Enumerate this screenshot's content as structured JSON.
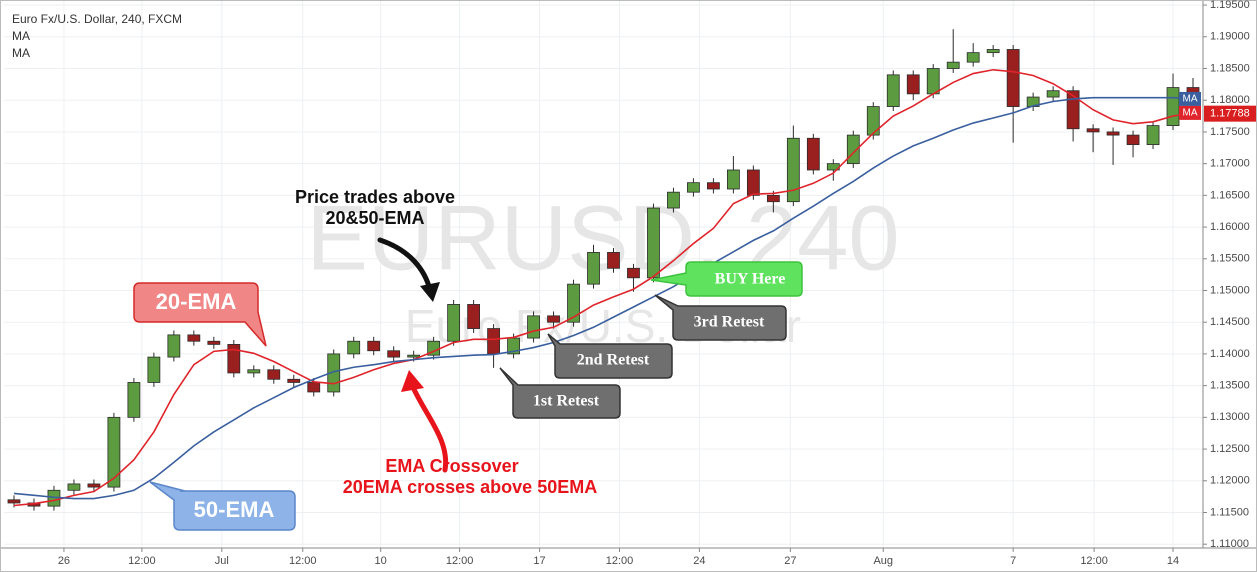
{
  "chart_data": {
    "type": "candlestick",
    "title": "Euro Fx/U.S. Dollar, 240, FXCM",
    "indicator_labels": [
      "MA",
      "MA"
    ],
    "watermark": [
      "EURUSD, 240",
      "Euro Fx/U.S. Dollar"
    ],
    "x": [
      0,
      1,
      2,
      3,
      4,
      5,
      6,
      7,
      8,
      9,
      10,
      11,
      12,
      13,
      14,
      15,
      16,
      17,
      18,
      19,
      20,
      21,
      22,
      23,
      24,
      25,
      26,
      27,
      28,
      29,
      30,
      31,
      32,
      33,
      34,
      35,
      36,
      37,
      38,
      39,
      40,
      41,
      42,
      43,
      44,
      45,
      46,
      47,
      48,
      49,
      50,
      51,
      52,
      53,
      54,
      55,
      56,
      57,
      58,
      59
    ],
    "open": [
      1.117,
      1.1165,
      1.116,
      1.1185,
      1.1195,
      1.119,
      1.13,
      1.1355,
      1.1395,
      1.143,
      1.142,
      1.1415,
      1.137,
      1.1375,
      1.136,
      1.1355,
      1.134,
      1.14,
      1.142,
      1.1405,
      1.1395,
      1.1398,
      1.142,
      1.1478,
      1.144,
      1.14,
      1.1425,
      1.146,
      1.145,
      1.151,
      1.156,
      1.1535,
      1.152,
      1.163,
      1.1655,
      1.167,
      1.166,
      1.169,
      1.165,
      1.164,
      1.174,
      1.169,
      1.17,
      1.1745,
      1.179,
      1.184,
      1.181,
      1.185,
      1.186,
      1.1875,
      1.188,
      1.179,
      1.1805,
      1.1815,
      1.1755,
      1.175,
      1.1745,
      1.173,
      1.176,
      1.182
    ],
    "high": [
      1.1177,
      1.1172,
      1.1192,
      1.1202,
      1.1202,
      1.1307,
      1.1362,
      1.1402,
      1.1437,
      1.1437,
      1.1427,
      1.1422,
      1.1382,
      1.1382,
      1.1367,
      1.1362,
      1.1407,
      1.1427,
      1.1427,
      1.1412,
      1.1405,
      1.1427,
      1.1485,
      1.1485,
      1.1447,
      1.1432,
      1.1467,
      1.1467,
      1.1517,
      1.1572,
      1.1567,
      1.1542,
      1.1637,
      1.1662,
      1.1677,
      1.1677,
      1.1712,
      1.1697,
      1.1657,
      1.176,
      1.1747,
      1.1707,
      1.1752,
      1.1797,
      1.1847,
      1.1847,
      1.1857,
      1.1912,
      1.189,
      1.1887,
      1.1887,
      1.1812,
      1.1822,
      1.1822,
      1.1762,
      1.1757,
      1.1752,
      1.1767,
      1.1842,
      1.1835
    ],
    "low": [
      1.1158,
      1.1153,
      1.1153,
      1.1178,
      1.1183,
      1.1183,
      1.1293,
      1.1348,
      1.1388,
      1.1413,
      1.1408,
      1.1363,
      1.1363,
      1.1353,
      1.1348,
      1.1333,
      1.1333,
      1.1393,
      1.1398,
      1.1388,
      1.1388,
      1.1391,
      1.1413,
      1.1433,
      1.1378,
      1.1393,
      1.1418,
      1.144,
      1.1443,
      1.1503,
      1.1528,
      1.1498,
      1.1513,
      1.1623,
      1.1648,
      1.1653,
      1.1653,
      1.1643,
      1.1623,
      1.1633,
      1.1683,
      1.1673,
      1.1693,
      1.1738,
      1.1783,
      1.18,
      1.1803,
      1.1843,
      1.1853,
      1.1868,
      1.1733,
      1.1783,
      1.1798,
      1.1735,
      1.1718,
      1.1698,
      1.171,
      1.1723,
      1.1753,
      1.1789
    ],
    "close": [
      1.1165,
      1.116,
      1.1185,
      1.1195,
      1.119,
      1.13,
      1.1355,
      1.1395,
      1.143,
      1.142,
      1.1415,
      1.137,
      1.1375,
      1.136,
      1.1355,
      1.134,
      1.14,
      1.142,
      1.1405,
      1.1395,
      1.1398,
      1.142,
      1.1478,
      1.144,
      1.14,
      1.1425,
      1.146,
      1.145,
      1.151,
      1.156,
      1.1535,
      1.152,
      1.163,
      1.1655,
      1.167,
      1.166,
      1.169,
      1.165,
      1.164,
      1.174,
      1.169,
      1.17,
      1.1745,
      1.179,
      1.184,
      1.181,
      1.185,
      1.186,
      1.1875,
      1.188,
      1.179,
      1.1805,
      1.1815,
      1.1755,
      1.175,
      1.1745,
      1.173,
      1.176,
      1.182,
      1.1796
    ],
    "up_color": "#5c9b3f",
    "down_color": "#9a1f1f",
    "series": [
      {
        "name": "20-EMA",
        "color": "#e0242b",
        "values": [
          1.1161,
          1.1164,
          1.1169,
          1.1177,
          1.1183,
          1.1204,
          1.1233,
          1.1277,
          1.1336,
          1.1383,
          1.1404,
          1.1407,
          1.1401,
          1.1388,
          1.1372,
          1.1356,
          1.1353,
          1.1363,
          1.1375,
          1.1385,
          1.1391,
          1.1404,
          1.1418,
          1.1423,
          1.1423,
          1.1426,
          1.1436,
          1.1442,
          1.1458,
          1.1477,
          1.149,
          1.1502,
          1.1522,
          1.1547,
          1.1574,
          1.1598,
          1.1637,
          1.1652,
          1.1653,
          1.1658,
          1.1669,
          1.1685,
          1.1717,
          1.1748,
          1.1775,
          1.1791,
          1.181,
          1.1828,
          1.1842,
          1.1848,
          1.1845,
          1.1839,
          1.1826,
          1.1807,
          1.1785,
          1.1769,
          1.1763,
          1.1766,
          1.1775,
          1.178
        ]
      },
      {
        "name": "50-EMA",
        "color": "#3a5f9f",
        "values": [
          1.118,
          1.1177,
          1.1174,
          1.1172,
          1.1172,
          1.1177,
          1.1185,
          1.1204,
          1.1229,
          1.1255,
          1.1277,
          1.1296,
          1.1315,
          1.1331,
          1.1347,
          1.136,
          1.1372,
          1.1379,
          1.1383,
          1.1388,
          1.1391,
          1.1394,
          1.1396,
          1.1398,
          1.1399,
          1.1404,
          1.141,
          1.1418,
          1.1429,
          1.1442,
          1.1458,
          1.1474,
          1.149,
          1.1506,
          1.1526,
          1.1543,
          1.1561,
          1.1579,
          1.1594,
          1.1614,
          1.1633,
          1.1653,
          1.1672,
          1.1693,
          1.1712,
          1.1728,
          1.174,
          1.1753,
          1.1764,
          1.1772,
          1.178,
          1.1791,
          1.1798,
          1.1802,
          1.1804,
          1.1804,
          1.1804,
          1.1804,
          1.1804,
          1.1802
        ]
      }
    ],
    "xlim": [
      -0.5,
      59.5
    ],
    "xticks": [
      {
        "value": 2.5,
        "label": "26"
      },
      {
        "value": 6.4,
        "label": "12:00"
      },
      {
        "value": 10.4,
        "label": "Jul"
      },
      {
        "value": 14.45,
        "label": "12:00"
      },
      {
        "value": 18.35,
        "label": "10"
      },
      {
        "value": 22.3,
        "label": "12:00"
      },
      {
        "value": 26.3,
        "label": "17"
      },
      {
        "value": 30.3,
        "label": "12:00"
      },
      {
        "value": 34.3,
        "label": "24"
      },
      {
        "value": 38.85,
        "label": "27"
      },
      {
        "value": 43.5,
        "label": "Aug"
      },
      {
        "value": 50,
        "label": "7"
      },
      {
        "value": 54.05,
        "label": "12:00"
      },
      {
        "value": 58,
        "label": "14"
      }
    ],
    "ylim": [
      1.1094,
      1.1958
    ],
    "yticks": [
      {
        "value": 1.11,
        "label": "1.11000"
      },
      {
        "value": 1.115,
        "label": "1.11500"
      },
      {
        "value": 1.12,
        "label": "1.12000"
      },
      {
        "value": 1.125,
        "label": "1.12500"
      },
      {
        "value": 1.13,
        "label": "1.13000"
      },
      {
        "value": 1.135,
        "label": "1.13500"
      },
      {
        "value": 1.14,
        "label": "1.14000"
      },
      {
        "value": 1.145,
        "label": "1.14500"
      },
      {
        "value": 1.15,
        "label": "1.15000"
      },
      {
        "value": 1.155,
        "label": "1.15500"
      },
      {
        "value": 1.16,
        "label": "1.16000"
      },
      {
        "value": 1.165,
        "label": "1.16500"
      },
      {
        "value": 1.17,
        "label": "1.17000"
      },
      {
        "value": 1.175,
        "label": "1.17500"
      },
      {
        "value": 1.18,
        "label": "1.18000"
      },
      {
        "value": 1.185,
        "label": "1.18500"
      },
      {
        "value": 1.19,
        "label": "1.19000"
      },
      {
        "value": 1.195,
        "label": "1.19500"
      }
    ],
    "grid": true,
    "last_price": 1.17788,
    "ma_tags": [
      "MA",
      "MA"
    ],
    "price_note": [
      "Price trades above",
      "20&50-EMA"
    ],
    "crossover_note": [
      "EMA Crossover",
      "20EMA crosses above 50EMA"
    ],
    "retests": [
      "1st Retest",
      "2nd Retest",
      "3rd Retest"
    ],
    "buy_label": "BUY Here"
  }
}
